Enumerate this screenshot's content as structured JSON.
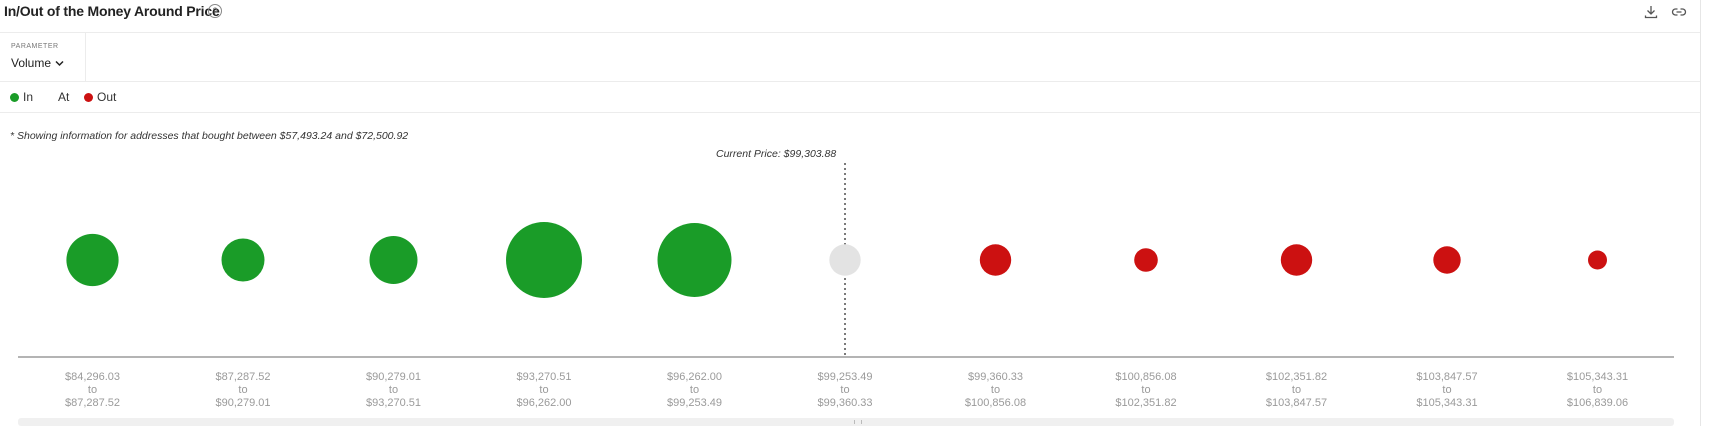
{
  "header": {
    "title": "In/Out of the Money Around Price",
    "help_glyph": "?",
    "download_icon": "download-icon",
    "link_icon": "link-icon"
  },
  "parameter": {
    "label": "PARAMETER",
    "value": "Volume",
    "chevron_icon": "chevron-down-icon"
  },
  "legend": {
    "items": [
      {
        "label": "In",
        "color": "#1a9c28"
      },
      {
        "label": "At",
        "color": ""
      },
      {
        "label": "Out",
        "color": "#cc1111"
      }
    ]
  },
  "note": "* Showing information for addresses that bought between $57,493.24 and $72,500.92",
  "current_price_label": "Current Price: $99,303.88",
  "colors": {
    "in": "#1a9c28",
    "at": "#e3e3e3",
    "out": "#cc1111"
  },
  "chart_data": {
    "type": "scatter",
    "current_price": 99303.88,
    "buckets": [
      {
        "from": "$84,296.03",
        "to_word": "to",
        "to": "$87,287.52",
        "status": "in",
        "relative_volume": 0.47
      },
      {
        "from": "$87,287.52",
        "to_word": "to",
        "to": "$90,279.01",
        "status": "in",
        "relative_volume": 0.32
      },
      {
        "from": "$90,279.01",
        "to_word": "to",
        "to": "$93,270.51",
        "status": "in",
        "relative_volume": 0.4
      },
      {
        "from": "$93,270.51",
        "to_word": "to",
        "to": "$96,262.00",
        "status": "in",
        "relative_volume": 1.0
      },
      {
        "from": "$96,262.00",
        "to_word": "to",
        "to": "$99,253.49",
        "status": "in",
        "relative_volume": 0.95
      },
      {
        "from": "$99,253.49",
        "to_word": "to",
        "to": "$99,360.33",
        "status": "at",
        "relative_volume": 0.17
      },
      {
        "from": "$99,360.33",
        "to_word": "to",
        "to": "$100,856.08",
        "status": "out",
        "relative_volume": 0.17
      },
      {
        "from": "$100,856.08",
        "to_word": "to",
        "to": "$102,351.82",
        "status": "out",
        "relative_volume": 0.096
      },
      {
        "from": "$102,351.82",
        "to_word": "to",
        "to": "$103,847.57",
        "status": "out",
        "relative_volume": 0.17
      },
      {
        "from": "$103,847.57",
        "to_word": "to",
        "to": "$105,343.31",
        "status": "out",
        "relative_volume": 0.13
      },
      {
        "from": "$105,343.31",
        "to_word": "to",
        "to": "$106,839.06",
        "status": "out",
        "relative_volume": 0.062
      }
    ]
  }
}
